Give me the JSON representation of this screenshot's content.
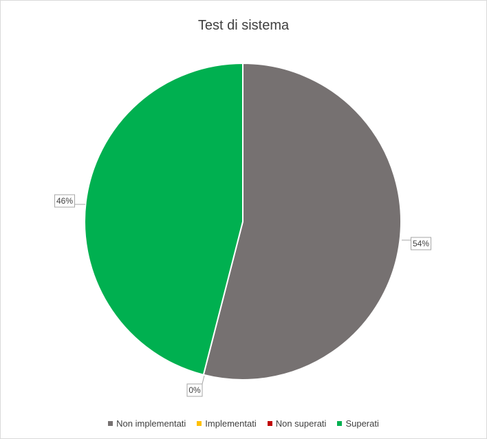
{
  "chart_data": {
    "type": "pie",
    "title": "Test di sistema",
    "categories": [
      "Non implementati",
      "Implementati",
      "Non superati",
      "Superati"
    ],
    "values": [
      54,
      0,
      0,
      46
    ],
    "labels": [
      "54%",
      "0%",
      "",
      "46%"
    ],
    "colors": [
      "#767171",
      "#FFC000",
      "#C00000",
      "#00B050"
    ],
    "legend_position": "bottom"
  }
}
